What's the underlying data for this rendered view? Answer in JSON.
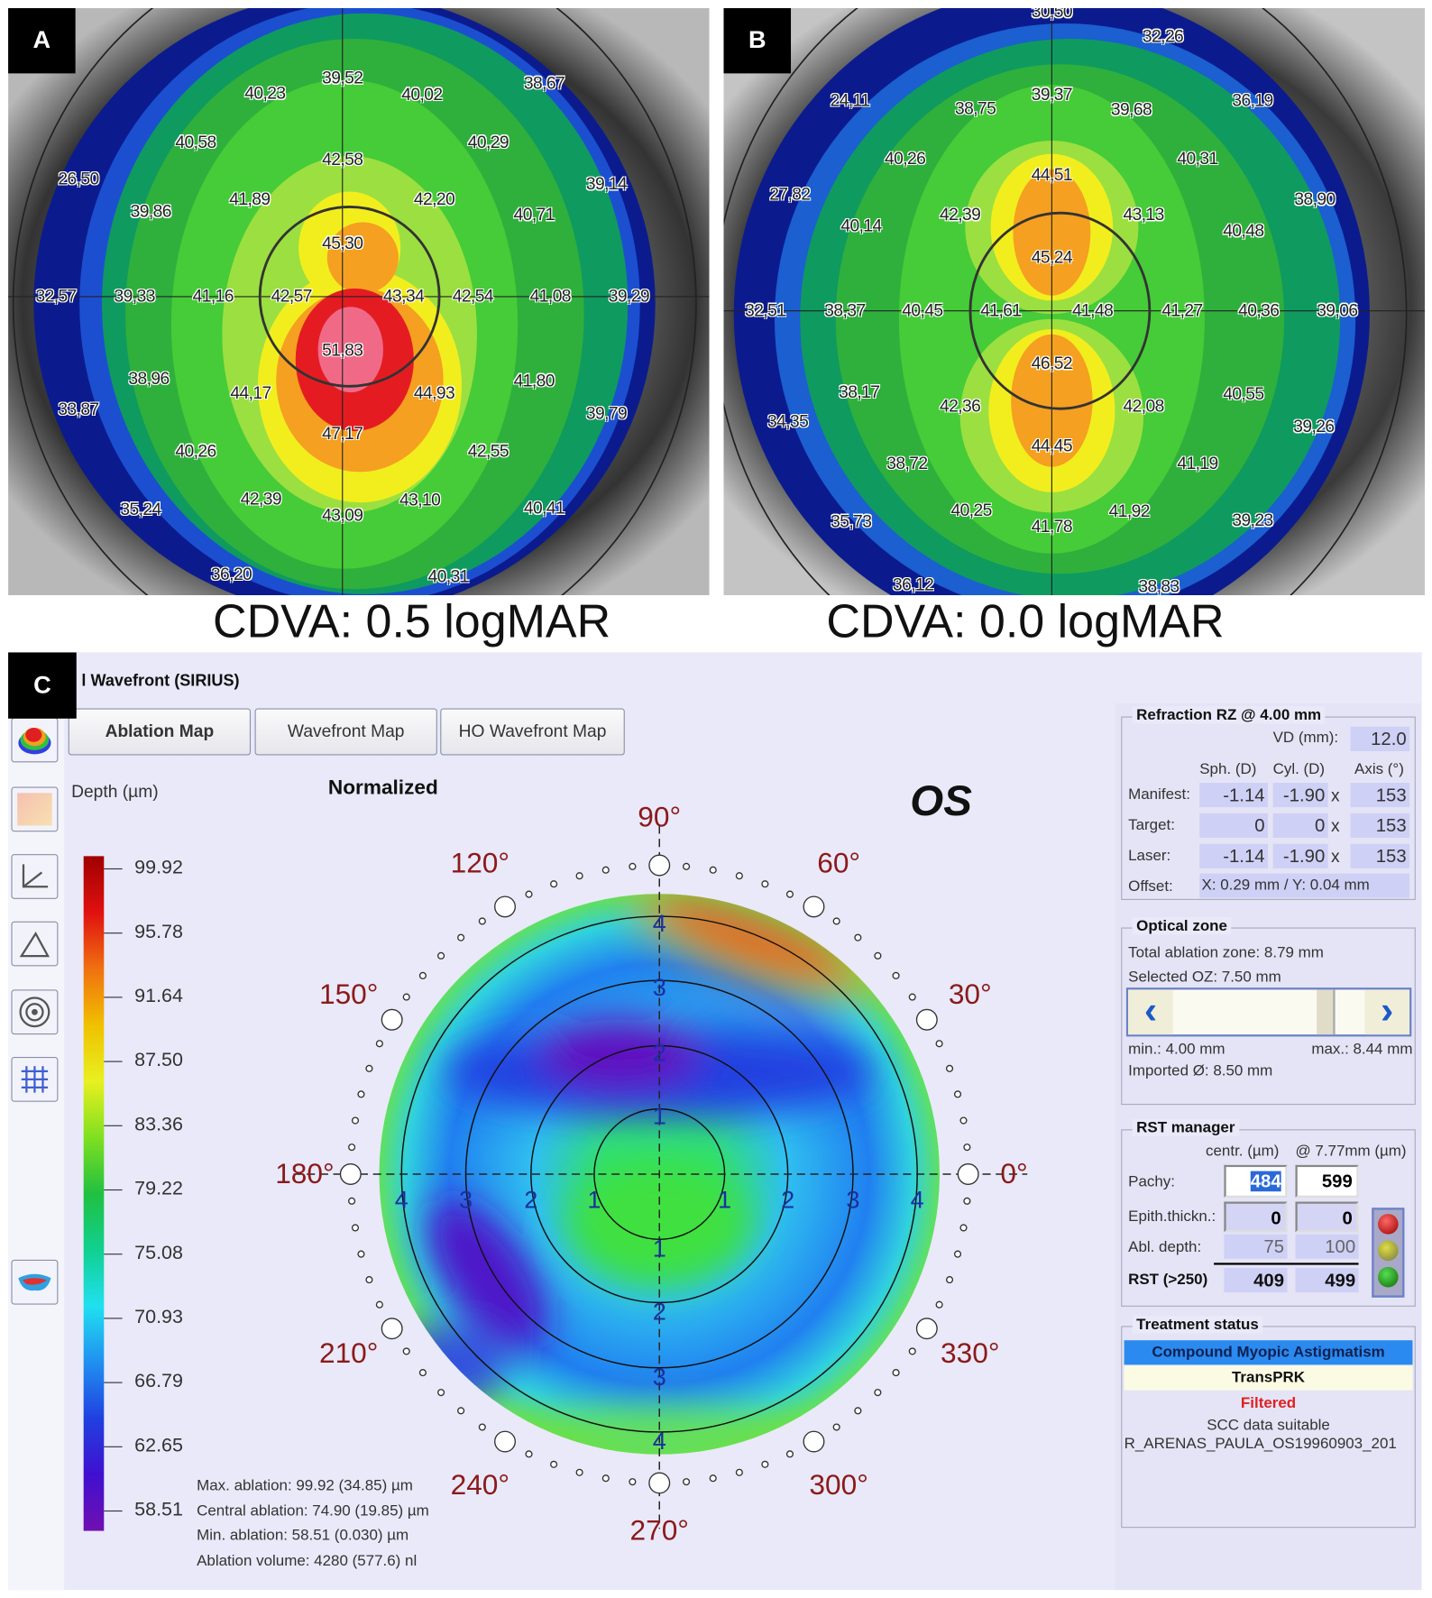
{
  "panel_a": {
    "label": "A",
    "caption": "CDVA: 0.5 logMAR",
    "values": [
      "40,23",
      "39,52",
      "40,02",
      "38,67",
      "40,58",
      "40,29",
      "42,58",
      "26,50",
      "39,14",
      "39,86",
      "41,89",
      "42,20",
      "40,71",
      "45,30",
      "32,57",
      "39,33",
      "41,16",
      "42,57",
      "43,34",
      "42,54",
      "41,08",
      "39,29",
      "51,83",
      "38,96",
      "44,17",
      "44,93",
      "41,80",
      "33,87",
      "39,79",
      "47,17",
      "40,26",
      "42,55",
      "42,39",
      "43,09",
      "43,10",
      "35,24",
      "40,41",
      "36,20",
      "40,31"
    ]
  },
  "panel_b": {
    "label": "B",
    "caption": "CDVA: 0.0 logMAR",
    "values": [
      "30,50",
      "32,26",
      "24,11",
      "38,75",
      "39,37",
      "39,68",
      "36,19",
      "40,26",
      "40,31",
      "44,51",
      "27,82",
      "38,90",
      "42,39",
      "43,13",
      "40,14",
      "40,48",
      "45,24",
      "32,51",
      "38,37",
      "40,45",
      "41,61",
      "41,48",
      "41,27",
      "40,36",
      "39,06",
      "46,52",
      "38,17",
      "42,36",
      "42,08",
      "40,55",
      "34,35",
      "39,26",
      "44,45",
      "38,72",
      "41,19",
      "40,25",
      "41,92",
      "41,78",
      "35,73",
      "39,23",
      "36,12",
      "38,83"
    ]
  },
  "panel_c": {
    "label": "C",
    "title": "l Wavefront (SIRIUS)",
    "tabs": [
      "Ablation Map",
      "Wavefront Map",
      "HO Wavefront Map"
    ],
    "depth_label": "Depth (µm)",
    "map_mode": "Normalized",
    "eye": "OS",
    "scale_ticks": [
      "99.92",
      "95.78",
      "91.64",
      "87.50",
      "83.36",
      "79.22",
      "75.08",
      "70.93",
      "66.79",
      "62.65",
      "58.51"
    ],
    "angles": [
      "90°",
      "60°",
      "30°",
      "0°",
      "330°",
      "300°",
      "270°",
      "240°",
      "210°",
      "180°",
      "150°",
      "120°"
    ],
    "ring_numbers": [
      "1",
      "2",
      "3",
      "4"
    ],
    "stats": [
      "Max. ablation: 99.92 (34.85) µm",
      "Central ablation: 74.90 (19.85) µm",
      "Min. ablation: 58.51 (0.030) µm",
      "Ablation volume: 4280 (577.6) nl"
    ],
    "refraction": {
      "title": "Refraction RZ @ 4.00 mm",
      "vd_label": "VD (mm):",
      "vd": "12.0",
      "headers": [
        "Sph. (D)",
        "Cyl. (D)",
        "Axis (°)"
      ],
      "rows": [
        {
          "label": "Manifest:",
          "sph": "-1.14",
          "cyl": "-1.90",
          "axis": "153"
        },
        {
          "label": "Target:",
          "sph": "0",
          "cyl": "0",
          "axis": "153"
        },
        {
          "label": "Laser:",
          "sph": "-1.14",
          "cyl": "-1.90",
          "axis": "153"
        }
      ],
      "x": "x",
      "offset_label": "Offset:",
      "offset": "X: 0.29 mm / Y: 0.04 mm"
    },
    "optical_zone": {
      "title": "Optical zone",
      "total": "Total ablation zone: 8.79 mm",
      "selected": "Selected OZ: 7.50 mm",
      "min": "min.: 4.00 mm",
      "max": "max.: 8.44 mm",
      "imported": "Imported Ø: 8.50 mm",
      "slider_fraction": 0.82
    },
    "rst": {
      "title": "RST manager",
      "col1": "centr. (µm)",
      "col2": "@ 7.77mm (µm)",
      "pachy_label": "Pachy:",
      "pachy_c": "484",
      "pachy_p": "599",
      "epith_label": "Epith.thickn.:",
      "epith_c": "0",
      "epith_p": "0",
      "abl_label": "Abl. depth:",
      "abl_c": "75",
      "abl_p": "100",
      "rst_label": "RST (>250)",
      "rst_c": "409",
      "rst_p": "499"
    },
    "treatment": {
      "title": "Treatment status",
      "type": "Compound Myopic Astigmatism",
      "method": "TransPRK",
      "filter": "Filtered",
      "scc": "SCC data suitable",
      "file": "R_ARENAS_PAULA_OS19960903_201"
    }
  }
}
